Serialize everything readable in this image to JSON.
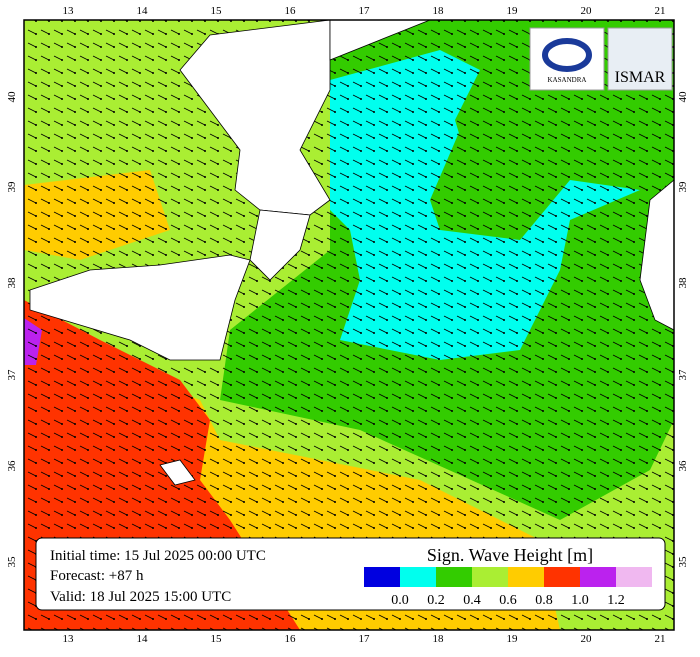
{
  "axes": {
    "lon_ticks": [
      "13",
      "14",
      "15",
      "16",
      "17",
      "18",
      "19",
      "20",
      "21"
    ],
    "lat_ticks": [
      "40",
      "39",
      "38",
      "37",
      "36",
      "35"
    ]
  },
  "info": {
    "initial": "Initial time: 15 Jul 2025 00:00 UTC",
    "forecast": "Forecast: +87 h",
    "valid": "Valid: 18 Jul 2025 15:00 UTC"
  },
  "legend": {
    "title": "Sign. Wave Height [m]",
    "colors": [
      "#0000e0",
      "#00ffee",
      "#33cc00",
      "#aaee33",
      "#ffcc00",
      "#ff3300",
      "#bb22ee",
      "#f0b8f0"
    ],
    "labels": [
      "0.0",
      "0.2",
      "0.4",
      "0.6",
      "0.8",
      "1.0",
      "1.2"
    ]
  },
  "logos": {
    "left": "KASANDRA",
    "right": "ISMAR"
  }
}
